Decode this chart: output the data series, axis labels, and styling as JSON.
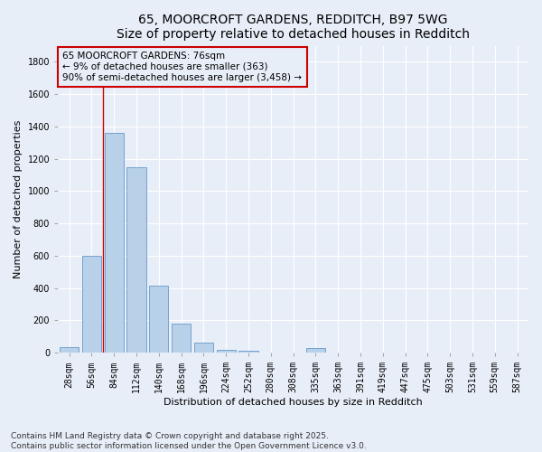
{
  "title_line1": "65, MOORCROFT GARDENS, REDDITCH, B97 5WG",
  "title_line2": "Size of property relative to detached houses in Redditch",
  "xlabel": "Distribution of detached houses by size in Redditch",
  "ylabel": "Number of detached properties",
  "bar_color": "#b8d0e8",
  "bar_edge_color": "#6699cc",
  "annotation_line_color": "#cc0000",
  "annotation_box_edge": "#cc0000",
  "background_color": "#e8eef8",
  "categories": [
    "28sqm",
    "56sqm",
    "84sqm",
    "112sqm",
    "140sqm",
    "168sqm",
    "196sqm",
    "224sqm",
    "252sqm",
    "280sqm",
    "308sqm",
    "335sqm",
    "363sqm",
    "391sqm",
    "419sqm",
    "447sqm",
    "475sqm",
    "503sqm",
    "531sqm",
    "559sqm",
    "587sqm"
  ],
  "values": [
    35,
    600,
    1360,
    1145,
    415,
    180,
    65,
    20,
    10,
    0,
    0,
    30,
    0,
    0,
    0,
    0,
    0,
    0,
    0,
    0,
    0
  ],
  "ylim": [
    0,
    1900
  ],
  "yticks": [
    0,
    200,
    400,
    600,
    800,
    1000,
    1200,
    1400,
    1600,
    1800
  ],
  "annotation_text": "65 MOORCROFT GARDENS: 76sqm\n← 9% of detached houses are smaller (363)\n90% of semi-detached houses are larger (3,458) →",
  "footer_text": "Contains HM Land Registry data © Crown copyright and database right 2025.\nContains public sector information licensed under the Open Government Licence v3.0.",
  "title_fontsize": 10,
  "axis_label_fontsize": 8,
  "tick_fontsize": 7,
  "annotation_fontsize": 7.5,
  "footer_fontsize": 6.5
}
